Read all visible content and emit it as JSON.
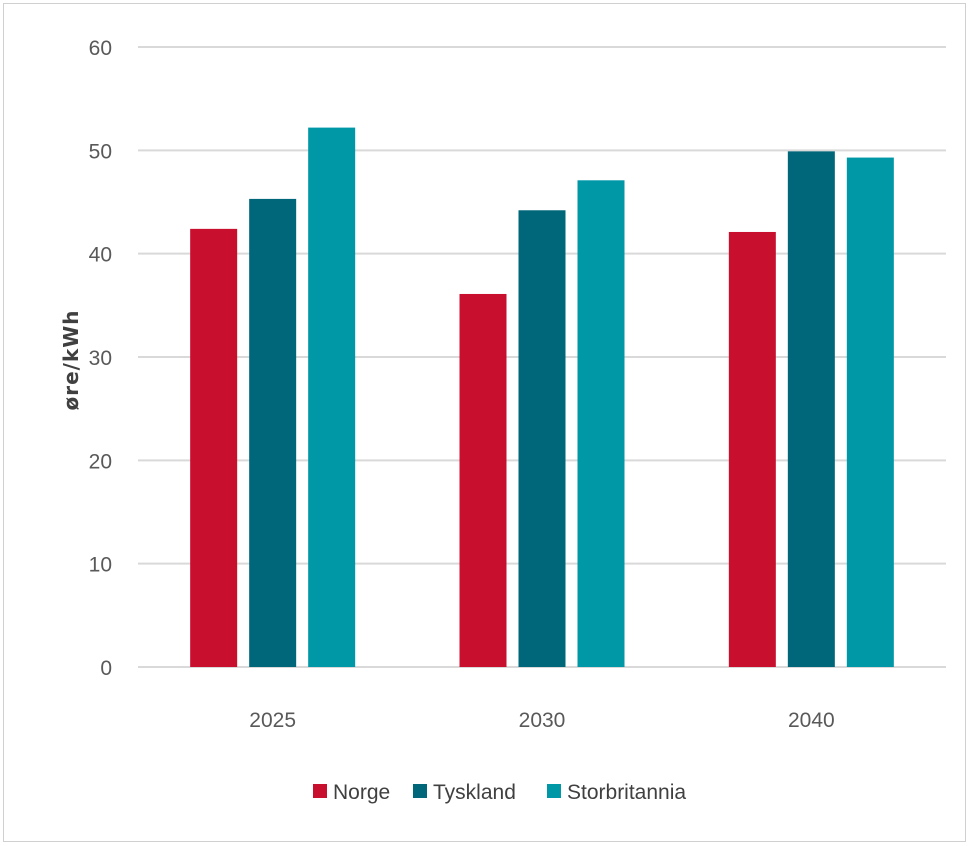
{
  "chart_data": {
    "type": "bar",
    "title": "",
    "xlabel": "",
    "ylabel": "øre/kWh",
    "categories": [
      "2025",
      "2030",
      "2040"
    ],
    "series": [
      {
        "name": "Norge",
        "color": "#c8102e",
        "values": [
          42.4,
          36.1,
          42.1
        ]
      },
      {
        "name": "Tyskland",
        "color": "#00667a",
        "values": [
          45.3,
          44.2,
          49.9
        ]
      },
      {
        "name": "Storbritannia",
        "color": "#0097a7",
        "values": [
          52.2,
          47.1,
          49.3
        ]
      }
    ],
    "ylim": [
      0,
      60
    ],
    "yticks": [
      "0",
      "10",
      "20",
      "30",
      "40",
      "50",
      "60"
    ],
    "grid": true,
    "legend_position": "bottom"
  }
}
